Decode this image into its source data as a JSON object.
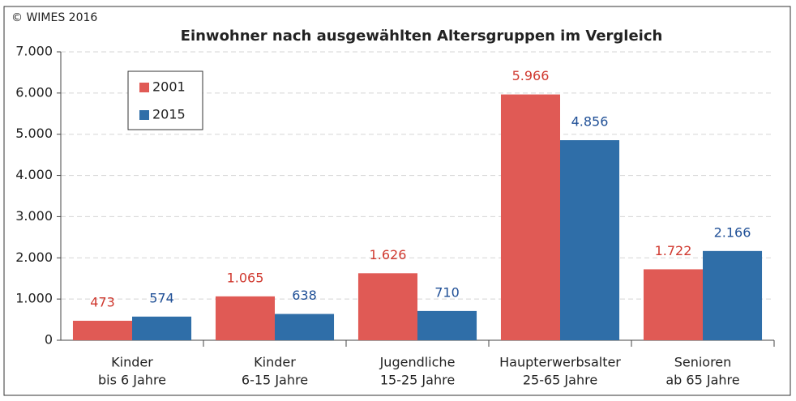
{
  "copyright": "© WIMES 2016",
  "chart_data": {
    "type": "bar",
    "title": "Einwohner nach ausgewählten Altersgruppen im Vergleich",
    "categories": [
      [
        "Kinder",
        "bis 6 Jahre"
      ],
      [
        "Kinder",
        "6-15 Jahre"
      ],
      [
        "Jugendliche",
        "15-25 Jahre"
      ],
      [
        "Haupterwerbsalter",
        "25-65 Jahre"
      ],
      [
        "Senioren",
        "ab 65 Jahre"
      ]
    ],
    "series": [
      {
        "name": "2001",
        "color": "#e05a55",
        "label_color": "#d0392f",
        "values": [
          473,
          1065,
          1626,
          5966,
          1722
        ],
        "value_labels": [
          "473",
          "1.065",
          "1.626",
          "5.966",
          "1.722"
        ]
      },
      {
        "name": "2015",
        "color": "#2f6ea8",
        "label_color": "#1f4f96",
        "values": [
          574,
          638,
          710,
          4856,
          2166
        ],
        "value_labels": [
          "574",
          "638",
          "710",
          "4.856",
          "2.166"
        ]
      }
    ],
    "ylim": [
      0,
      7000
    ],
    "yticks": [
      0,
      {
        "value": 1000,
        "label": "1.000"
      },
      {
        "value": 2000,
        "label": "2.000"
      },
      {
        "value": 3000,
        "label": "3.000"
      },
      {
        "value": 4000,
        "label": "4.000"
      },
      {
        "value": 5000,
        "label": "5.000"
      },
      {
        "value": 6000,
        "label": "6.000"
      },
      {
        "value": 7000,
        "label": "7.000"
      }
    ],
    "grid": true,
    "legend": "top-left"
  }
}
